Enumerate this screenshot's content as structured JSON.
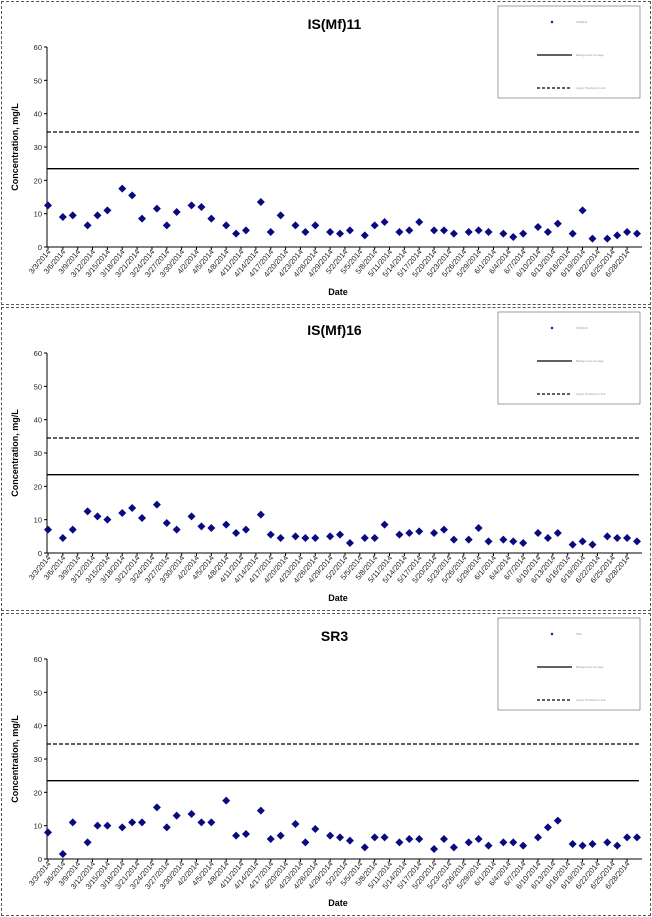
{
  "charts": [
    {
      "title": "IS(Mf)11",
      "ylabel": "Concentration, mg/L",
      "xlabel": "Date",
      "legend": [
        "IS(Mf)11",
        "Background Average",
        "Upper Prediction Limit"
      ]
    },
    {
      "title": "IS(Mf)16",
      "ylabel": "Concentration, mg/L",
      "xlabel": "Date",
      "legend": [
        "IS(Mf)16",
        "Background Average",
        "Upper Prediction Limit"
      ]
    },
    {
      "title": "SR3",
      "ylabel": "Concentration, mg/L",
      "xlabel": "Date",
      "legend": [
        "SR3",
        "Background Average",
        "Upper Prediction Limit"
      ]
    }
  ],
  "chart_data": [
    {
      "type": "scatter",
      "title": "IS(Mf)11",
      "xlabel": "Date",
      "ylabel": "Concentration, mg/L",
      "ylim": [
        0,
        60
      ],
      "yticks": [
        0,
        10,
        20,
        30,
        40,
        50,
        60
      ],
      "xticks": [
        "3/3/2014",
        "3/6/2014",
        "3/9/2014",
        "3/12/2014",
        "3/15/2014",
        "3/18/2014",
        "3/21/2014",
        "3/24/2014",
        "3/27/2014",
        "3/30/2014",
        "4/2/2014",
        "4/5/2014",
        "4/8/2014",
        "4/11/2014",
        "4/14/2014",
        "4/17/2014",
        "4/20/2014",
        "4/23/2014",
        "4/26/2014",
        "4/29/2014",
        "5/2/2014",
        "5/5/2014",
        "5/8/2014",
        "5/11/2014",
        "5/14/2014",
        "5/17/2014",
        "5/20/2014",
        "5/23/2014",
        "5/26/2014",
        "5/29/2014",
        "6/1/2014",
        "6/4/2014",
        "6/7/2014",
        "6/10/2014",
        "6/13/2014",
        "6/16/2014",
        "6/19/2014",
        "6/22/2014",
        "6/25/2014",
        "6/28/2014"
      ],
      "x_range": [
        "3/3/2014",
        "6/30/2014"
      ],
      "grid": false,
      "legend_position": "top-right",
      "marker": "diamond",
      "marker_color": "#0a0a80",
      "reference_lines": [
        {
          "style": "solid",
          "value": 23.5
        },
        {
          "style": "dashed",
          "value": 34.5
        }
      ],
      "series": [
        {
          "x": [
            "3/3/2014",
            "3/6/2014",
            "3/8/2014",
            "3/11/2014",
            "3/13/2014",
            "3/15/2014",
            "3/18/2014",
            "3/20/2014",
            "3/22/2014",
            "3/25/2014",
            "3/27/2014",
            "3/29/2014",
            "4/1/2014",
            "4/3/2014",
            "4/5/2014",
            "4/8/2014",
            "4/10/2014",
            "4/12/2014",
            "4/15/2014",
            "4/17/2014",
            "4/19/2014",
            "4/22/2014",
            "4/24/2014",
            "4/26/2014",
            "4/29/2014",
            "5/1/2014",
            "5/3/2014",
            "5/6/2014",
            "5/8/2014",
            "5/10/2014",
            "5/13/2014",
            "5/15/2014",
            "5/17/2014",
            "5/20/2014",
            "5/22/2014",
            "5/24/2014",
            "5/27/2014",
            "5/29/2014",
            "5/31/2014",
            "6/3/2014",
            "6/5/2014",
            "6/7/2014",
            "6/10/2014",
            "6/12/2014",
            "6/14/2014",
            "6/17/2014",
            "6/19/2014",
            "6/21/2014",
            "6/24/2014",
            "6/26/2014",
            "6/28/2014",
            "6/30/2014"
          ],
          "y": [
            12.5,
            9,
            9.5,
            6.5,
            9.5,
            11,
            17.5,
            15.5,
            8.5,
            11.5,
            6.5,
            10.5,
            12.5,
            12,
            8.5,
            6.5,
            4,
            5,
            13.5,
            4.5,
            9.5,
            6.5,
            4.5,
            6.5,
            4.5,
            4,
            5,
            3.5,
            6.5,
            7.5,
            4.5,
            5,
            7.5,
            5,
            5,
            4,
            4.5,
            5,
            4.5,
            4,
            3,
            4,
            6,
            4.5,
            7,
            4,
            11,
            2.5,
            2.5,
            3.5,
            4.5,
            4
          ]
        }
      ]
    },
    {
      "type": "scatter",
      "title": "IS(Mf)16",
      "xlabel": "Date",
      "ylabel": "Concentration, mg/L",
      "ylim": [
        0,
        60
      ],
      "yticks": [
        0,
        10,
        20,
        30,
        40,
        50,
        60
      ],
      "xticks": [
        "3/3/2014",
        "3/6/2014",
        "3/9/2014",
        "3/12/2014",
        "3/15/2014",
        "3/18/2014",
        "3/21/2014",
        "3/24/2014",
        "3/27/2014",
        "3/30/2014",
        "4/2/2014",
        "4/5/2014",
        "4/8/2014",
        "4/11/2014",
        "4/14/2014",
        "4/17/2014",
        "4/20/2014",
        "4/23/2014",
        "4/26/2014",
        "4/29/2014",
        "5/2/2014",
        "5/5/2014",
        "5/8/2014",
        "5/11/2014",
        "5/14/2014",
        "5/17/2014",
        "5/20/2014",
        "5/23/2014",
        "5/26/2014",
        "5/29/2014",
        "6/1/2014",
        "6/4/2014",
        "6/7/2014",
        "6/10/2014",
        "6/13/2014",
        "6/16/2014",
        "6/19/2014",
        "6/22/2014",
        "6/25/2014",
        "6/28/2014"
      ],
      "x_range": [
        "3/3/2014",
        "6/30/2014"
      ],
      "grid": false,
      "legend_position": "top-right",
      "marker": "diamond",
      "marker_color": "#0a0a80",
      "reference_lines": [
        {
          "style": "solid",
          "value": 23.5
        },
        {
          "style": "dashed",
          "value": 34.5
        }
      ],
      "series": [
        {
          "x": [
            "3/3/2014",
            "3/6/2014",
            "3/8/2014",
            "3/11/2014",
            "3/13/2014",
            "3/15/2014",
            "3/18/2014",
            "3/20/2014",
            "3/22/2014",
            "3/25/2014",
            "3/27/2014",
            "3/29/2014",
            "4/1/2014",
            "4/3/2014",
            "4/5/2014",
            "4/8/2014",
            "4/10/2014",
            "4/12/2014",
            "4/15/2014",
            "4/17/2014",
            "4/19/2014",
            "4/22/2014",
            "4/24/2014",
            "4/26/2014",
            "4/29/2014",
            "5/1/2014",
            "5/3/2014",
            "5/6/2014",
            "5/8/2014",
            "5/10/2014",
            "5/13/2014",
            "5/15/2014",
            "5/17/2014",
            "5/20/2014",
            "5/22/2014",
            "5/24/2014",
            "5/27/2014",
            "5/29/2014",
            "5/31/2014",
            "6/3/2014",
            "6/5/2014",
            "6/7/2014",
            "6/10/2014",
            "6/12/2014",
            "6/14/2014",
            "6/17/2014",
            "6/19/2014",
            "6/21/2014",
            "6/24/2014",
            "6/26/2014",
            "6/28/2014",
            "6/30/2014"
          ],
          "y": [
            7,
            4.5,
            7,
            12.5,
            11,
            10,
            12,
            13.5,
            10.5,
            14.5,
            9,
            7,
            11,
            8,
            7.5,
            8.5,
            6,
            7,
            11.5,
            5.5,
            4.5,
            5,
            4.5,
            4.5,
            5,
            5.5,
            3,
            4.5,
            4.5,
            8.5,
            5.5,
            6,
            6.5,
            6,
            7,
            4,
            4,
            7.5,
            3.5,
            4,
            3.5,
            3,
            6,
            4.5,
            6,
            2.5,
            3.5,
            2.5,
            5,
            4.5,
            4.5,
            3.5
          ]
        }
      ]
    },
    {
      "type": "scatter",
      "title": "SR3",
      "xlabel": "Date",
      "ylabel": "Concentration, mg/L",
      "ylim": [
        0,
        60
      ],
      "yticks": [
        0,
        10,
        20,
        30,
        40,
        50,
        60
      ],
      "xticks": [
        "3/3/2014",
        "3/6/2014",
        "3/9/2014",
        "3/12/2014",
        "3/15/2014",
        "3/18/2014",
        "3/21/2014",
        "3/24/2014",
        "3/27/2014",
        "3/30/2014",
        "4/2/2014",
        "4/5/2014",
        "4/8/2014",
        "4/11/2014",
        "4/14/2014",
        "4/17/2014",
        "4/20/2014",
        "4/23/2014",
        "4/26/2014",
        "4/29/2014",
        "5/2/2014",
        "5/5/2014",
        "5/8/2014",
        "5/11/2014",
        "5/14/2014",
        "5/17/2014",
        "5/20/2014",
        "5/23/2014",
        "5/26/2014",
        "5/29/2014",
        "6/1/2014",
        "6/4/2014",
        "6/7/2014",
        "6/10/2014",
        "6/13/2014",
        "6/16/2014",
        "6/19/2014",
        "6/22/2014",
        "6/25/2014",
        "6/28/2014"
      ],
      "x_range": [
        "3/3/2014",
        "6/30/2014"
      ],
      "grid": false,
      "legend_position": "top-right",
      "marker": "diamond",
      "marker_color": "#0a0a80",
      "reference_lines": [
        {
          "style": "solid",
          "value": 23.5
        },
        {
          "style": "dashed",
          "value": 34.5
        }
      ],
      "series": [
        {
          "x": [
            "3/3/2014",
            "3/6/2014",
            "3/8/2014",
            "3/11/2014",
            "3/13/2014",
            "3/15/2014",
            "3/18/2014",
            "3/20/2014",
            "3/22/2014",
            "3/25/2014",
            "3/27/2014",
            "3/29/2014",
            "4/1/2014",
            "4/3/2014",
            "4/5/2014",
            "4/8/2014",
            "4/10/2014",
            "4/12/2014",
            "4/15/2014",
            "4/17/2014",
            "4/19/2014",
            "4/22/2014",
            "4/24/2014",
            "4/26/2014",
            "4/29/2014",
            "5/1/2014",
            "5/3/2014",
            "5/6/2014",
            "5/8/2014",
            "5/10/2014",
            "5/13/2014",
            "5/15/2014",
            "5/17/2014",
            "5/20/2014",
            "5/22/2014",
            "5/24/2014",
            "5/27/2014",
            "5/29/2014",
            "5/31/2014",
            "6/3/2014",
            "6/5/2014",
            "6/7/2014",
            "6/10/2014",
            "6/12/2014",
            "6/14/2014",
            "6/17/2014",
            "6/19/2014",
            "6/21/2014",
            "6/24/2014",
            "6/26/2014",
            "6/28/2014",
            "6/30/2014"
          ],
          "y": [
            8,
            1.5,
            11,
            5,
            10,
            10,
            9.5,
            11,
            11,
            15.5,
            9.5,
            13,
            13.5,
            11,
            11,
            17.5,
            7,
            7.5,
            14.5,
            6,
            7,
            10.5,
            5,
            9,
            7,
            6.5,
            5.5,
            3.5,
            6.5,
            6.5,
            5,
            6,
            6,
            3,
            6,
            3.5,
            5,
            6,
            4,
            5,
            5,
            4,
            6.5,
            9.5,
            11.5,
            4.5,
            4,
            4.5,
            5,
            4,
            6.5,
            6.5
          ]
        }
      ]
    }
  ]
}
